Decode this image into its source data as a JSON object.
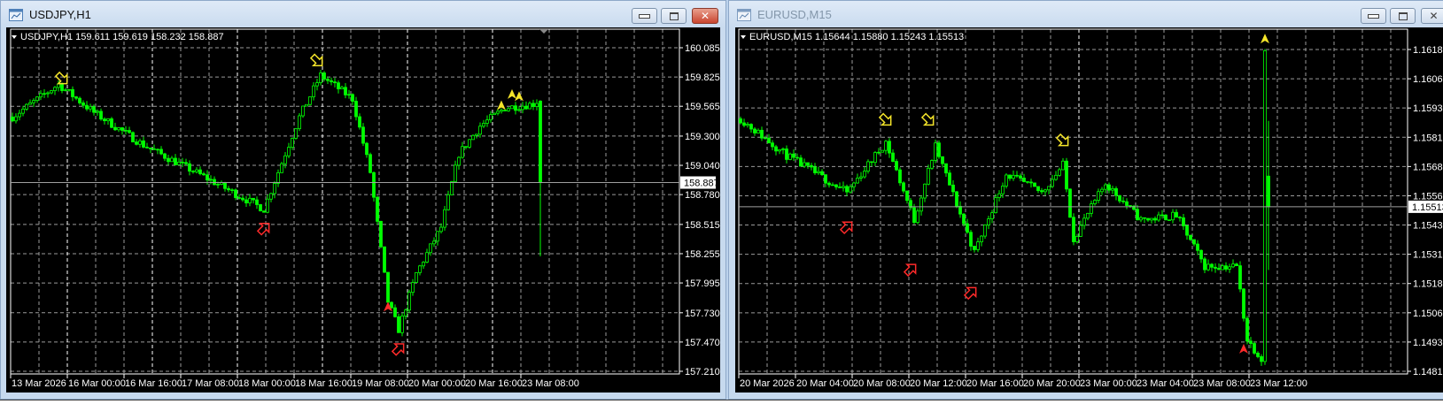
{
  "windows": [
    {
      "title": "USDJPY,H1",
      "active": true,
      "header": "USDJPY,H1  159.611 159.619 158.232 158.887",
      "ohlc": {
        "open": 159.611,
        "high": 159.619,
        "low": 158.232,
        "close": 158.887
      },
      "current_price": "158.887",
      "price_labels": [
        "160.085",
        "159.825",
        "159.565",
        "159.300",
        "159.040",
        "158.780",
        "158.515",
        "158.255",
        "157.995",
        "157.730",
        "157.470",
        "157.210"
      ],
      "date_labels": [
        "13 Mar 2026",
        "16 Mar 00:00",
        "16 Mar 16:00",
        "17 Mar 08:00",
        "18 Mar 00:00",
        "18 Mar 16:00",
        "19 Mar 08:00",
        "20 Mar 00:00",
        "20 Mar 16:00",
        "23 Mar 08:00"
      ],
      "axis_max": 160.085,
      "axis_min": 157.21,
      "price_path": [
        [
          0,
          159.47
        ],
        [
          13,
          159.76
        ],
        [
          23,
          159.51
        ],
        [
          37,
          159.22
        ],
        [
          54,
          158.94
        ],
        [
          71,
          158.65
        ],
        [
          75,
          158.98
        ],
        [
          81,
          159.47
        ],
        [
          87,
          159.84
        ],
        [
          96,
          159.63
        ],
        [
          101,
          158.98
        ],
        [
          106,
          157.83
        ],
        [
          109,
          157.58
        ],
        [
          114,
          158.08
        ],
        [
          121,
          158.49
        ],
        [
          126,
          159.14
        ],
        [
          132,
          159.39
        ],
        [
          139,
          159.55
        ],
        [
          148,
          159.59
        ]
      ],
      "markers": [
        {
          "type": "sell-arrow",
          "bar": 14,
          "price": 159.74
        },
        {
          "type": "sell-arrow",
          "bar": 86,
          "price": 159.9
        },
        {
          "type": "buy-arrow",
          "bar": 71,
          "price": 158.55
        },
        {
          "type": "buy-arrow",
          "bar": 109,
          "price": 157.48
        },
        {
          "type": "sell-mark",
          "bar": 138,
          "price": 159.57
        },
        {
          "type": "sell-mark",
          "bar": 141,
          "price": 159.67
        },
        {
          "type": "sell-mark",
          "bar": 143,
          "price": 159.65
        },
        {
          "type": "buy-mark",
          "bar": 106,
          "price": 157.78
        }
      ]
    },
    {
      "title": "EURUSD,M15",
      "active": false,
      "header": "EURUSD,M15  1.15644 1.15880 1.15243 1.15513",
      "ohlc": {
        "open": 1.15644,
        "high": 1.1588,
        "low": 1.15243,
        "close": 1.15513
      },
      "current_price": "1.15513",
      "price_labels": [
        "1.16185",
        "1.16060",
        "1.15935",
        "1.15810",
        "1.15685",
        "1.15560",
        "1.15435",
        "1.15310",
        "1.15185",
        "1.15060",
        "1.14935",
        "1.14810"
      ],
      "date_labels": [
        "20 Mar 2026",
        "20 Mar 04:00",
        "20 Mar 08:00",
        "20 Mar 12:00",
        "20 Mar 16:00",
        "20 Mar 20:00",
        "23 Mar 00:00",
        "23 Mar 04:00",
        "23 Mar 08:00",
        "23 Mar 12:00"
      ],
      "axis_max": 1.16185,
      "axis_min": 1.1481,
      "price_path": [
        [
          0,
          1.15889
        ],
        [
          13,
          1.15732
        ],
        [
          30,
          1.15574
        ],
        [
          41,
          1.15791
        ],
        [
          49,
          1.15456
        ],
        [
          55,
          1.15771
        ],
        [
          66,
          1.15318
        ],
        [
          75,
          1.15653
        ],
        [
          85,
          1.15574
        ],
        [
          91,
          1.15692
        ],
        [
          94,
          1.15377
        ],
        [
          103,
          1.15614
        ],
        [
          113,
          1.15456
        ],
        [
          123,
          1.15476
        ],
        [
          131,
          1.15259
        ],
        [
          140,
          1.15259
        ],
        [
          143,
          1.14944
        ],
        [
          147,
          1.14865
        ],
        [
          148,
          1.1618
        ]
      ],
      "markers": [
        {
          "type": "sell-arrow",
          "bar": 41,
          "price": 1.1585
        },
        {
          "type": "sell-arrow",
          "bar": 53,
          "price": 1.1585
        },
        {
          "type": "sell-arrow",
          "bar": 91,
          "price": 1.15762
        },
        {
          "type": "buy-arrow",
          "bar": 30,
          "price": 1.1546
        },
        {
          "type": "buy-arrow",
          "bar": 48,
          "price": 1.15279
        },
        {
          "type": "buy-arrow",
          "bar": 65,
          "price": 1.1518
        },
        {
          "type": "sell-mark",
          "bar": 148,
          "price": 1.1623
        },
        {
          "type": "buy-mark",
          "bar": 142,
          "price": 1.14905
        }
      ]
    }
  ],
  "colors": {
    "background": "#000000",
    "candle": "#00ff00",
    "grid": "#9a9a9a",
    "separator": "#ffffff",
    "sell_marker": "#f5e52a",
    "buy_marker": "#ff2a2a",
    "bid_line": "#a0a0a0"
  }
}
